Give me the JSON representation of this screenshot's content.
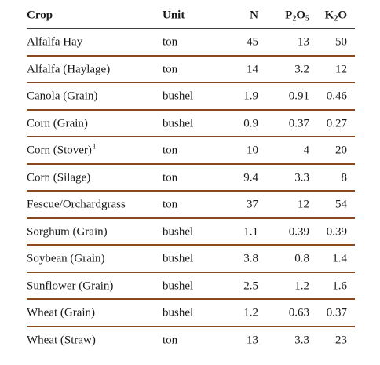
{
  "headers": {
    "crop": "Crop",
    "unit": "Unit",
    "n": "N",
    "p2o5": {
      "a": "P",
      "b": "2",
      "c": "O",
      "d": "5"
    },
    "k2o": {
      "a": "K",
      "b": "2",
      "c": "O"
    }
  },
  "rows": [
    {
      "crop": "Alfalfa Hay",
      "sup": "",
      "unit": "ton",
      "n": "45",
      "p": "13",
      "k": "50"
    },
    {
      "crop": "Alfalfa (Haylage)",
      "sup": "",
      "unit": "ton",
      "n": "14",
      "p": "3.2",
      "k": "12"
    },
    {
      "crop": "Canola (Grain)",
      "sup": "",
      "unit": "bushel",
      "n": "1.9",
      "p": "0.91",
      "k": "0.46"
    },
    {
      "crop": "Corn (Grain)",
      "sup": "",
      "unit": "bushel",
      "n": "0.9",
      "p": "0.37",
      "k": "0.27"
    },
    {
      "crop": "Corn (Stover)",
      "sup": "1",
      "unit": "ton",
      "n": "10",
      "p": "4",
      "k": "20"
    },
    {
      "crop": "Corn (Silage)",
      "sup": "",
      "unit": "ton",
      "n": "9.4",
      "p": "3.3",
      "k": "8"
    },
    {
      "crop": "Fescue/Orchardgrass",
      "sup": "",
      "unit": "ton",
      "n": "37",
      "p": "12",
      "k": "54"
    },
    {
      "crop": "Sorghum (Grain)",
      "sup": "",
      "unit": "bushel",
      "n": "1.1",
      "p": "0.39",
      "k": "0.39"
    },
    {
      "crop": "Soybean (Grain)",
      "sup": "",
      "unit": "bushel",
      "n": "3.8",
      "p": "0.8",
      "k": "1.4"
    },
    {
      "crop": "Sunflower (Grain)",
      "sup": "",
      "unit": "bushel",
      "n": "2.5",
      "p": "1.2",
      "k": "1.6"
    },
    {
      "crop": "Wheat (Grain)",
      "sup": "",
      "unit": "bushel",
      "n": "1.2",
      "p": "0.63",
      "k": "0.37"
    },
    {
      "crop": "Wheat (Straw)",
      "sup": "",
      "unit": "ton",
      "n": "13",
      "p": "3.3",
      "k": "23"
    }
  ],
  "colors": {
    "rule": "#8a4a1e",
    "header_rule": "#3c3c3c",
    "text": "#1a1a1a"
  }
}
